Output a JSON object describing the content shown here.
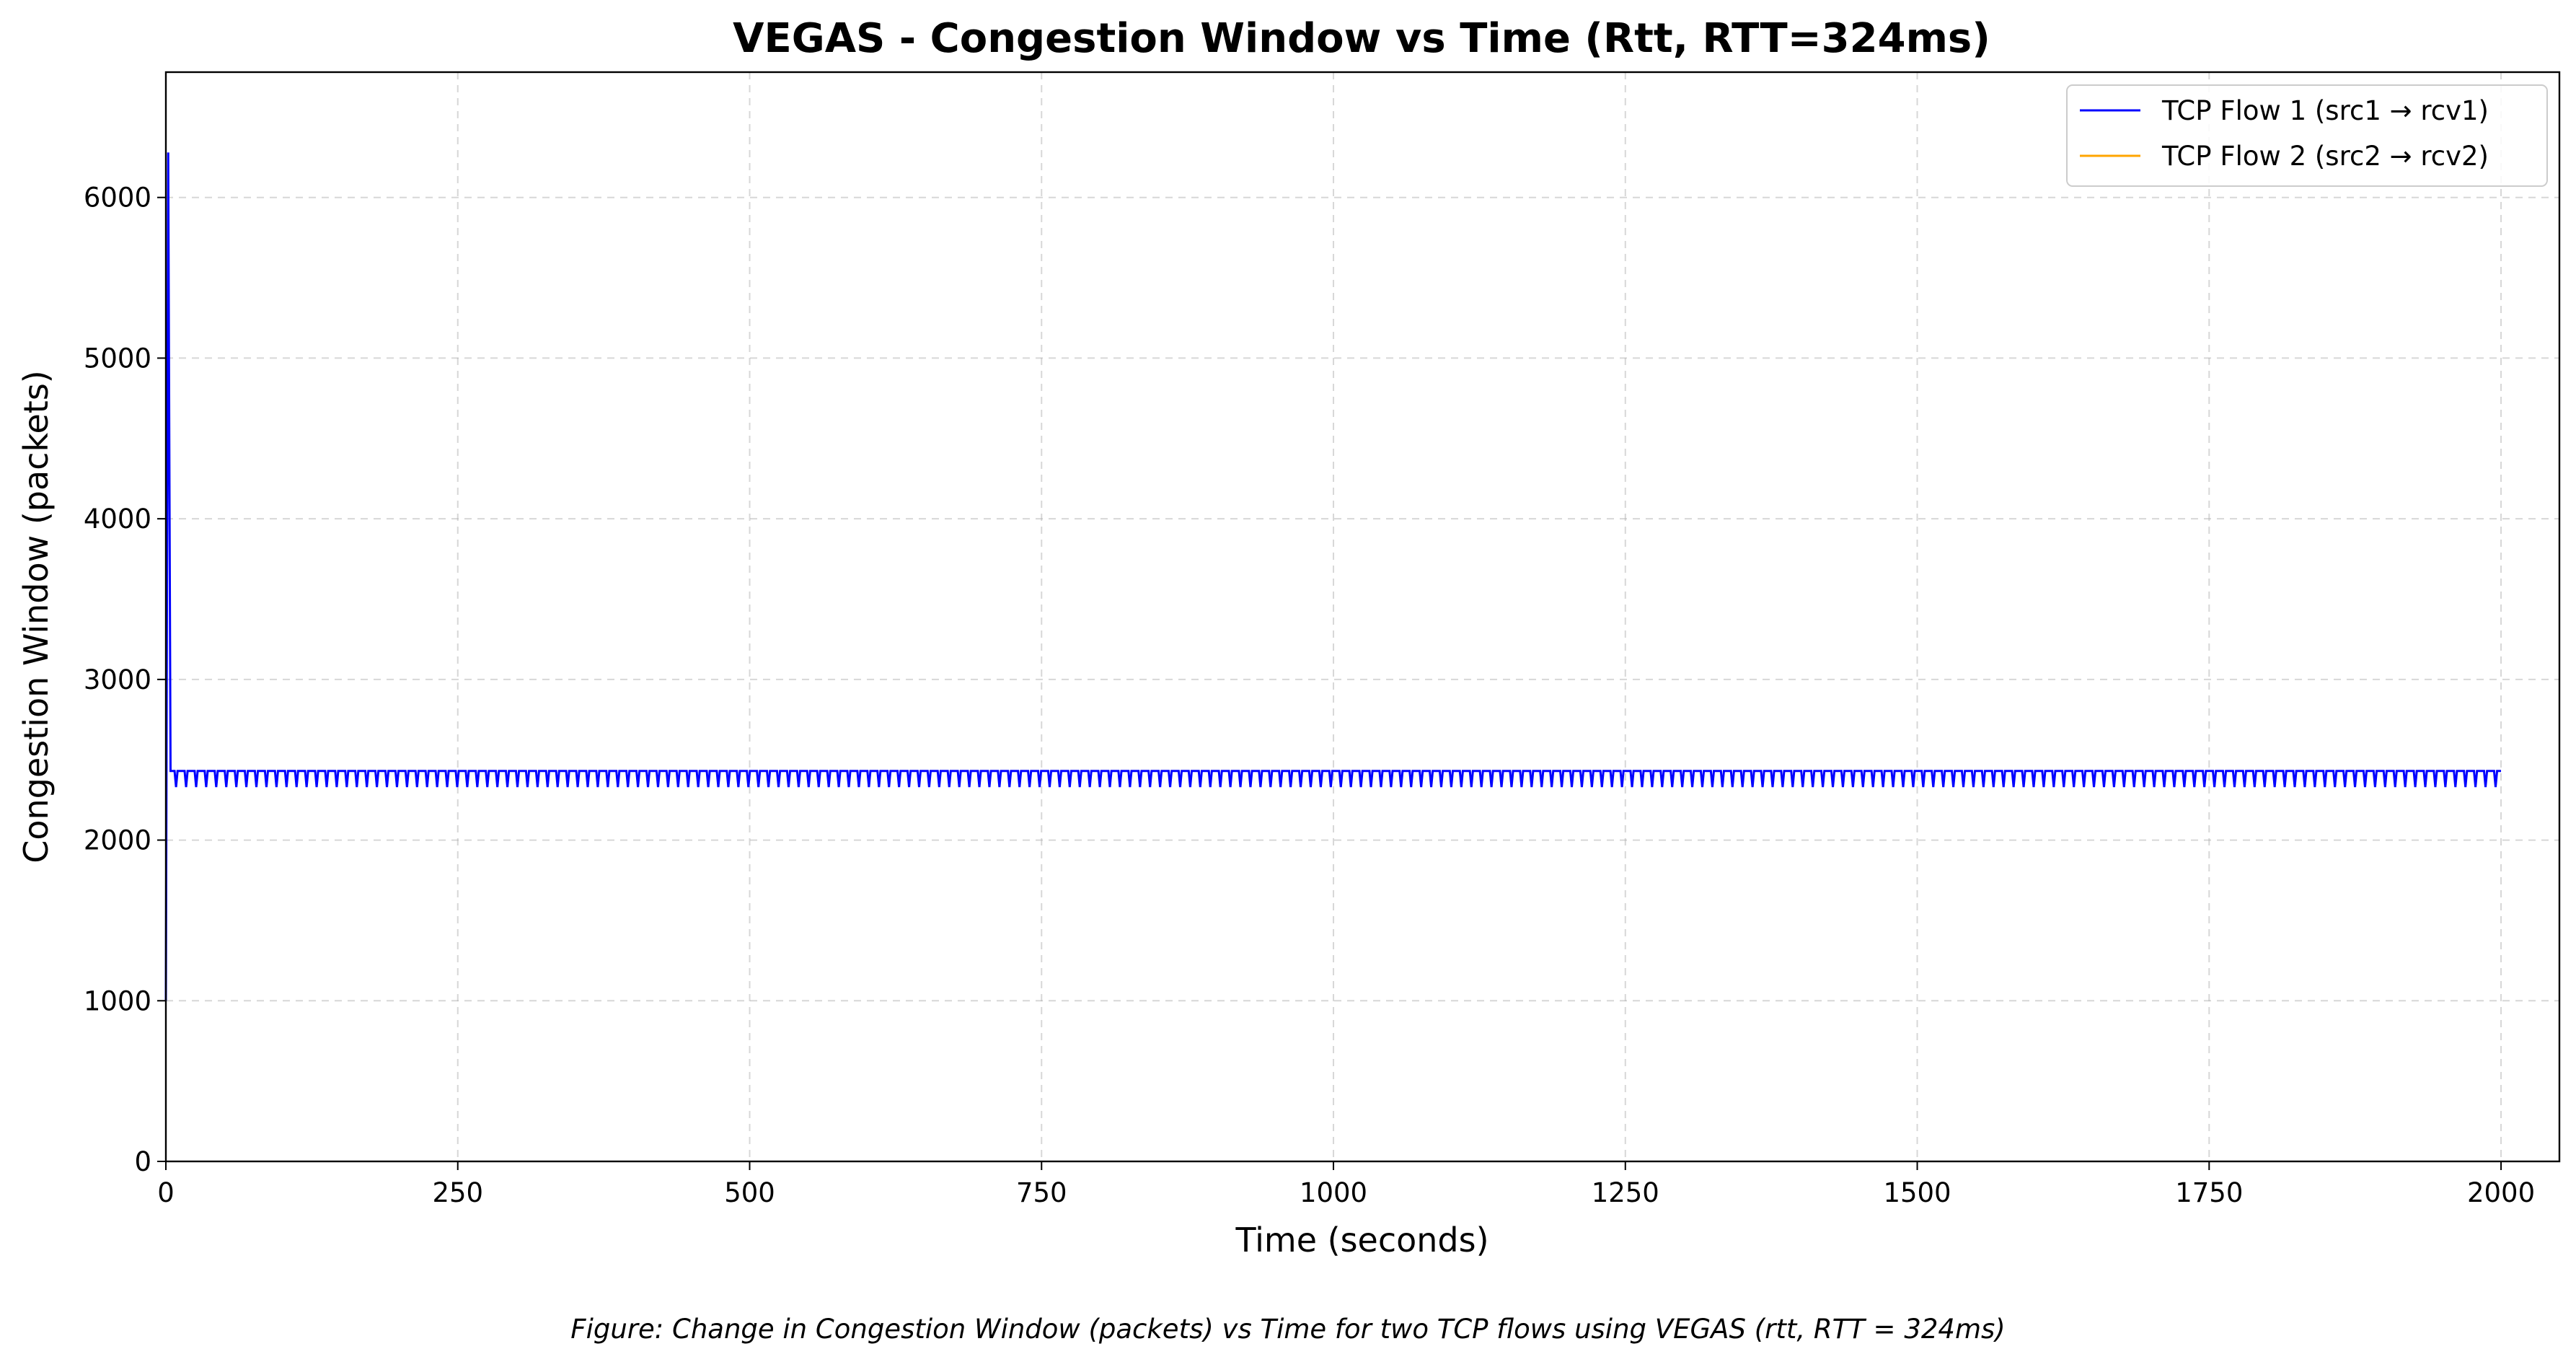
{
  "chart_data": {
    "type": "line",
    "title": "VEGAS - Congestion Window vs Time (Rtt, RTT=324ms)",
    "xlabel": "Time (seconds)",
    "ylabel": "Congestion Window (packets)",
    "xlim": [
      0,
      2050
    ],
    "ylim": [
      0,
      6780
    ],
    "xticks": [
      0,
      250,
      500,
      750,
      1000,
      1250,
      1500,
      1750,
      2000
    ],
    "yticks": [
      0,
      1000,
      2000,
      3000,
      4000,
      5000,
      6000
    ],
    "grid": true,
    "legend_position": "top-right",
    "caption": "Figure: Change in Congestion Window (packets) vs Time for two TCP flows using VEGAS (rtt, RTT = 324ms)",
    "series": [
      {
        "name": "TCP Flow 1 (src1 → rcv1)",
        "color": "#0000ff",
        "pattern": {
          "points": [
            [
              0,
              1000
            ],
            [
              2,
              6280
            ],
            [
              4,
              2430
            ]
          ],
          "oscillation": {
            "start": 4,
            "end": 2000,
            "period": 8.6,
            "high": 2430,
            "low": 2330
          }
        }
      },
      {
        "name": "TCP Flow 2 (src2 → rcv2)",
        "color": "#ffa500",
        "pattern": {
          "points": []
        }
      }
    ]
  }
}
